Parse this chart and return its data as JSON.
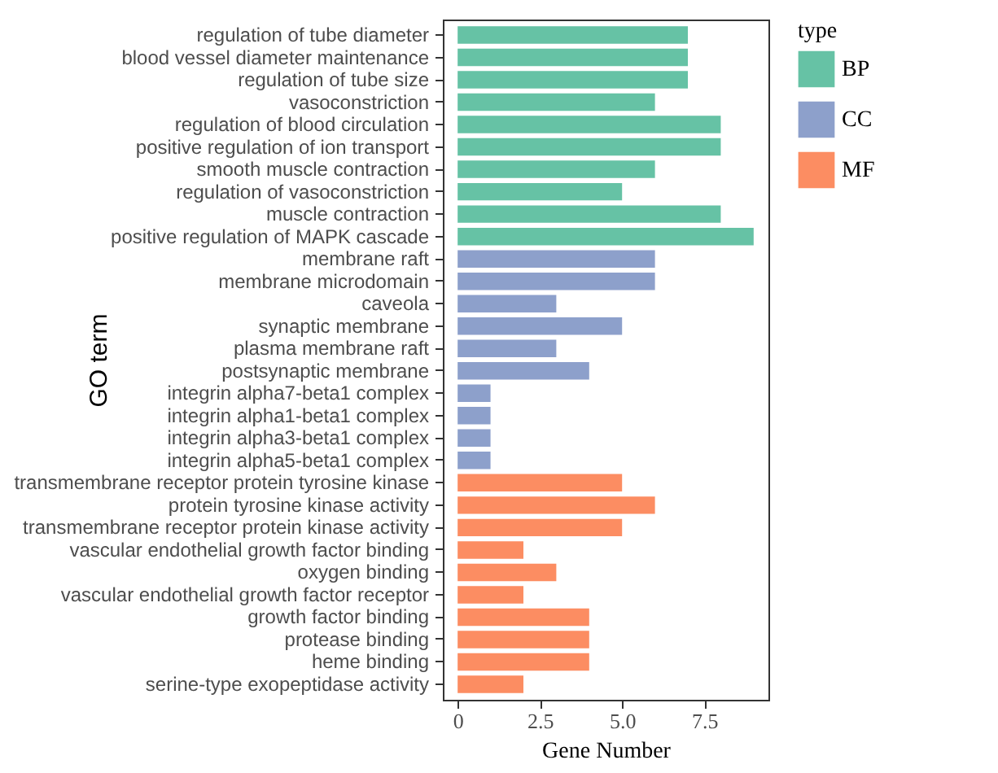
{
  "chart_data": {
    "type": "bar",
    "orientation": "horizontal",
    "xlabel": "Gene  Number",
    "ylabel": "GO term",
    "legend_title": "type",
    "legend": "right",
    "grid": false,
    "categories": [
      "regulation of tube diameter",
      "blood vessel diameter maintenance",
      "regulation of tube size",
      "vasoconstriction",
      "regulation of blood circulation",
      "positive regulation of ion transport",
      "smooth muscle contraction",
      "regulation of vasoconstriction",
      "muscle contraction",
      "positive regulation of MAPK cascade",
      "membrane raft",
      "membrane microdomain",
      "caveola",
      "synaptic membrane",
      "plasma membrane raft",
      "postsynaptic membrane",
      "integrin alpha7-beta1 complex",
      "integrin alpha1-beta1 complex",
      "integrin alpha3-beta1 complex",
      "integrin alpha5-beta1 complex",
      "transmembrane receptor protein tyrosine kinase",
      "protein tyrosine kinase activity",
      "transmembrane receptor protein kinase activity",
      "vascular endothelial growth factor binding",
      "oxygen binding",
      "vascular endothelial growth factor receptor",
      "growth factor binding",
      "protease binding",
      "heme binding",
      "serine-type exopeptidase activity"
    ],
    "series": [
      {
        "name": "BP",
        "color": "#66c2a5",
        "values": [
          7,
          7,
          7,
          6,
          8,
          8,
          6,
          5,
          8,
          9,
          null,
          null,
          null,
          null,
          null,
          null,
          null,
          null,
          null,
          null,
          null,
          null,
          null,
          null,
          null,
          null,
          null,
          null,
          null,
          null
        ]
      },
      {
        "name": "CC",
        "color": "#8da0cb",
        "values": [
          null,
          null,
          null,
          null,
          null,
          null,
          null,
          null,
          null,
          null,
          6,
          6,
          3,
          5,
          3,
          4,
          1,
          1,
          1,
          1,
          null,
          null,
          null,
          null,
          null,
          null,
          null,
          null,
          null,
          null
        ]
      },
      {
        "name": "MF",
        "color": "#fc8d62",
        "values": [
          null,
          null,
          null,
          null,
          null,
          null,
          null,
          null,
          null,
          null,
          null,
          null,
          null,
          null,
          null,
          null,
          null,
          null,
          null,
          null,
          5,
          6,
          5,
          2,
          3,
          2,
          4,
          4,
          4,
          2
        ]
      }
    ],
    "xlim": [
      -0.45,
      9.45
    ],
    "xticks": [
      0,
      2.5,
      {
        "value": 5,
        "label": "5.0"
      },
      7.5
    ]
  }
}
